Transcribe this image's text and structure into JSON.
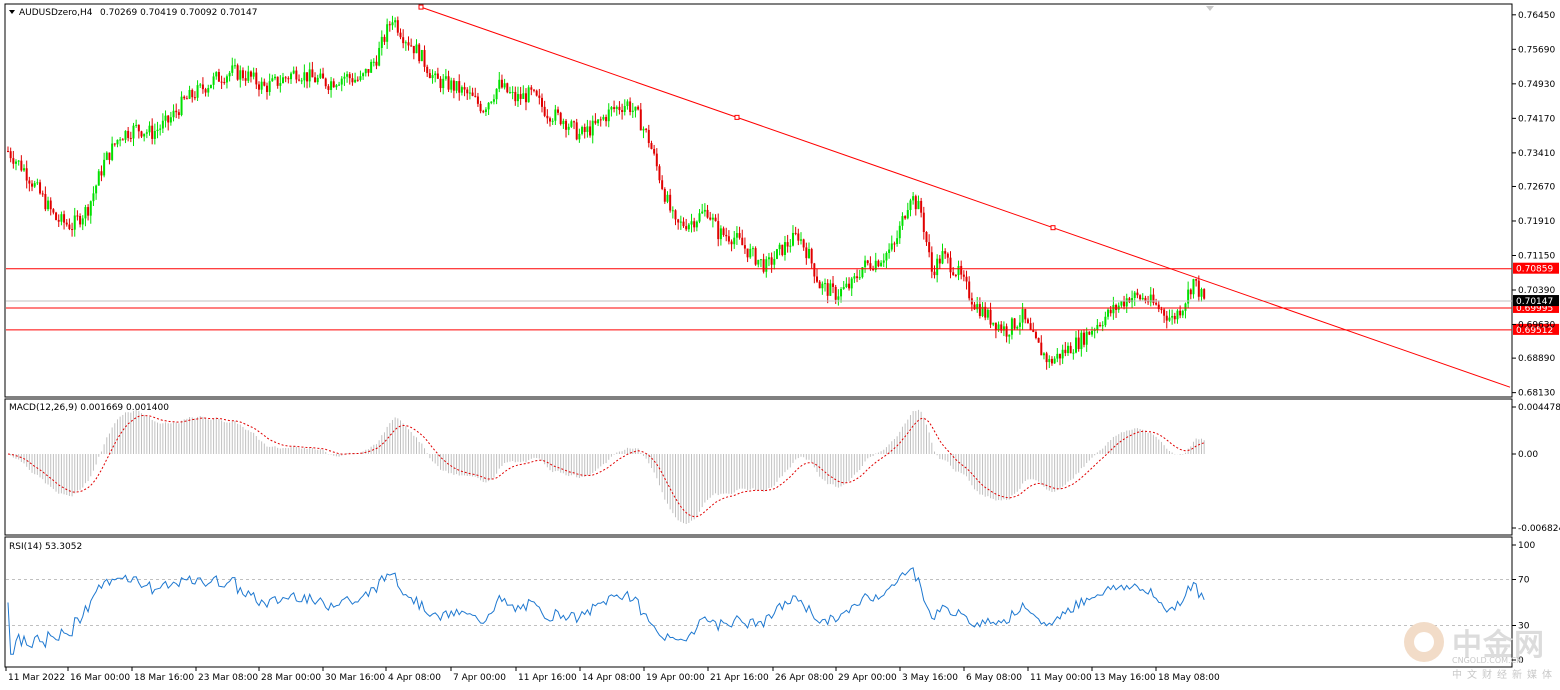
{
  "header": {
    "symbol": "AUDUSDzero,H4",
    "ohlc": "0.70269 0.70419 0.70092 0.70147"
  },
  "chart_data": {
    "type": "candlestick",
    "symbol": "AUDUSDzero",
    "timeframe": "H4",
    "last": 0.70147,
    "price_axis_ticks": [
      0.7645,
      0.7569,
      0.7493,
      0.7417,
      0.7341,
      0.7267,
      0.7191,
      0.7115,
      0.7039,
      0.6963,
      0.6889,
      0.6813
    ],
    "price_axis_labels": [
      "0.76450",
      "0.75690",
      "0.74930",
      "0.74170",
      "0.73410",
      "0.72670",
      "0.71910",
      "0.71150",
      "0.70390",
      "0.69630",
      "0.68890",
      "0.68130"
    ],
    "time_labels": [
      "11 Mar 2022",
      "16 Mar 00:00",
      "18 Mar 16:00",
      "23 Mar 08:00",
      "28 Mar 00:00",
      "30 Mar 16:00",
      "4 Apr 08:00",
      "7 Apr 00:00",
      "11 Apr 16:00",
      "14 Apr 08:00",
      "19 Apr 00:00",
      "21 Apr 16:00",
      "26 Apr 08:00",
      "29 Apr 00:00",
      "3 May 16:00",
      "6 May 08:00",
      "11 May 00:00",
      "13 May 16:00",
      "18 May 08:00"
    ],
    "horizontal_levels": [
      {
        "price": 0.70859,
        "label": "0.70859",
        "color": "#ff0000"
      },
      {
        "price": 0.69995,
        "label": "0.69995",
        "color": "#ff0000"
      },
      {
        "price": 0.69512,
        "label": "0.69512",
        "color": "#ff0000"
      }
    ],
    "current_price_label": "0.70147",
    "trendline": {
      "from_price": 0.7662,
      "to_price": 0.6825,
      "color": "#ff0000"
    },
    "path_points": [
      [
        0,
        0.7345
      ],
      [
        6,
        0.7305
      ],
      [
        12,
        0.725
      ],
      [
        18,
        0.7195
      ],
      [
        24,
        0.718
      ],
      [
        30,
        0.722
      ],
      [
        36,
        0.732
      ],
      [
        42,
        0.738
      ],
      [
        48,
        0.7395
      ],
      [
        54,
        0.7385
      ],
      [
        60,
        0.741
      ],
      [
        66,
        0.7455
      ],
      [
        72,
        0.748
      ],
      [
        78,
        0.7505
      ],
      [
        84,
        0.752
      ],
      [
        90,
        0.751
      ],
      [
        96,
        0.7485
      ],
      [
        102,
        0.75
      ],
      [
        108,
        0.752
      ],
      [
        114,
        0.7505
      ],
      [
        120,
        0.7495
      ],
      [
        126,
        0.751
      ],
      [
        132,
        0.75
      ],
      [
        138,
        0.755
      ],
      [
        144,
        0.764
      ],
      [
        148,
        0.76
      ],
      [
        154,
        0.756
      ],
      [
        160,
        0.75
      ],
      [
        166,
        0.749
      ],
      [
        172,
        0.747
      ],
      [
        178,
        0.744
      ],
      [
        184,
        0.749
      ],
      [
        190,
        0.746
      ],
      [
        196,
        0.747
      ],
      [
        202,
        0.743
      ],
      [
        208,
        0.7415
      ],
      [
        214,
        0.738
      ],
      [
        220,
        0.74
      ],
      [
        226,
        0.7435
      ],
      [
        232,
        0.745
      ],
      [
        236,
        0.742
      ],
      [
        240,
        0.737
      ],
      [
        246,
        0.725
      ],
      [
        250,
        0.718
      ],
      [
        256,
        0.719
      ],
      [
        262,
        0.7215
      ],
      [
        266,
        0.7165
      ],
      [
        272,
        0.7155
      ],
      [
        278,
        0.712
      ],
      [
        284,
        0.709
      ],
      [
        290,
        0.713
      ],
      [
        296,
        0.716
      ],
      [
        300,
        0.7115
      ],
      [
        304,
        0.705
      ],
      [
        310,
        0.703
      ],
      [
        316,
        0.705
      ],
      [
        320,
        0.709
      ],
      [
        326,
        0.7105
      ],
      [
        332,
        0.7135
      ],
      [
        338,
        0.725
      ],
      [
        342,
        0.721
      ],
      [
        346,
        0.708
      ],
      [
        350,
        0.7115
      ],
      [
        356,
        0.7075
      ],
      [
        362,
        0.701
      ],
      [
        368,
        0.6975
      ],
      [
        374,
        0.695
      ],
      [
        380,
        0.698
      ],
      [
        384,
        0.693
      ],
      [
        390,
        0.688
      ],
      [
        396,
        0.6905
      ],
      [
        402,
        0.693
      ],
      [
        408,
        0.6965
      ],
      [
        414,
        0.6995
      ],
      [
        420,
        0.7025
      ],
      [
        426,
        0.702
      ],
      [
        432,
        0.6995
      ],
      [
        436,
        0.6975
      ],
      [
        440,
        0.7005
      ],
      [
        444,
        0.706
      ],
      [
        448,
        0.7015
      ]
    ],
    "macd": {
      "label": "MACD(12,26,9) 0.001669 0.001400",
      "ticks": [
        "0.004478",
        "0.00",
        "-0.006824"
      ],
      "max": 0.004478,
      "min": -0.006824
    },
    "rsi": {
      "label": "RSI(14) 53.3052",
      "ticks": [
        "100",
        "70",
        "30",
        "0"
      ],
      "value": 53.3052
    }
  },
  "watermark": {
    "brand": "中金网",
    "site": "CNGOLD.COM.CN",
    "tagline": "中文财经新媒体"
  },
  "colors": {
    "bull": "#00e000",
    "bear": "#e00000",
    "levels": "#ff0000",
    "macd_hist": "#c0c0c0",
    "macd_signal": "#e00000",
    "rsi_line": "#1e78d0"
  }
}
